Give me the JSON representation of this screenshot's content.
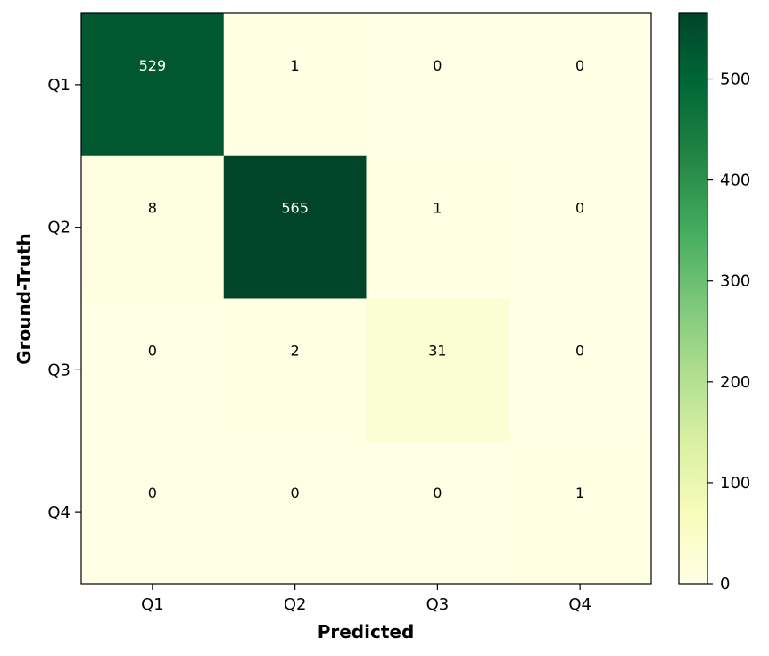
{
  "chart_data": {
    "type": "heatmap",
    "title": "",
    "xlabel": "Predicted",
    "ylabel": "Ground-Truth",
    "x_categories": [
      "Q1",
      "Q2",
      "Q3",
      "Q4"
    ],
    "y_categories": [
      "Q1",
      "Q2",
      "Q3",
      "Q4"
    ],
    "matrix": [
      [
        529,
        1,
        0,
        0
      ],
      [
        8,
        565,
        1,
        0
      ],
      [
        0,
        2,
        31,
        0
      ],
      [
        0,
        0,
        0,
        1
      ]
    ],
    "colormap": "YlGn",
    "vmin": 0,
    "vmax": 565,
    "colorbar_ticks": [
      0,
      100,
      200,
      300,
      400,
      500
    ],
    "grid": false
  },
  "colors": {
    "low": "#ffffe5",
    "high": "#004529",
    "text_dark": "#000000",
    "text_light": "#ffffff"
  }
}
